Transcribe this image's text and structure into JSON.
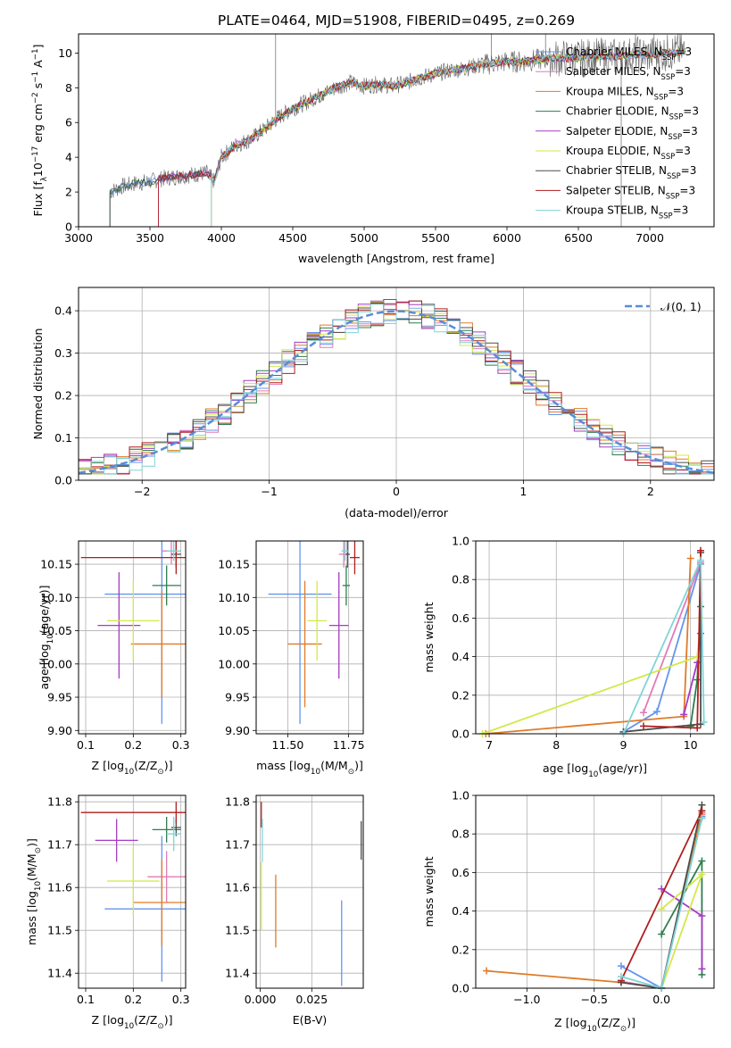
{
  "figure_title": "PLATE=0464, MJD=51908, FIBERID=0495, z=0.269",
  "colors": {
    "Chabrier MILES": "#6495ed",
    "Salpeter MILES": "#e27ab8",
    "Kroupa MILES": "#e07b28",
    "Chabrier ELODIE": "#2e7d4f",
    "Salpeter ELODIE": "#a63bc4",
    "Kroupa ELODIE": "#d3e84a",
    "Chabrier STELIB": "#4d4d4d",
    "Salpeter STELIB": "#b01e1e",
    "Kroupa STELIB": "#7fd4d9",
    "N(0,1)": "#5b8bd6"
  },
  "chart_data": [
    {
      "type": "line",
      "id": "spectrum",
      "title": "PLATE=0464, MJD=51908, FIBERID=0495, z=0.269",
      "xlabel": "wavelength [Angstrom, rest frame]",
      "ylabel_parts": [
        "Flux [f",
        "λ",
        "10",
        "−17",
        " erg cm",
        "−2",
        " s",
        "−1",
        " A",
        "−1",
        "]"
      ],
      "xlim": [
        3000,
        7450
      ],
      "ylim": [
        0,
        11.1
      ],
      "xticks": [
        "3000",
        "3500",
        "4000",
        "4500",
        "5000",
        "5500",
        "6000",
        "6500",
        "7000"
      ],
      "yticks": [
        "0",
        "2",
        "4",
        "6",
        "8",
        "10"
      ],
      "legend_loc": "right",
      "legend": [
        {
          "base": "Chabrier MILES, N",
          "sub": "SSP",
          "tail": "=3"
        },
        {
          "base": "Salpeter MILES, N",
          "sub": "SSP",
          "tail": "=3"
        },
        {
          "base": "Kroupa MILES, N",
          "sub": "SSP",
          "tail": "=3"
        },
        {
          "base": "Chabrier ELODIE, N",
          "sub": "SSP",
          "tail": "=3"
        },
        {
          "base": "Salpeter ELODIE, N",
          "sub": "SSP",
          "tail": "=3"
        },
        {
          "base": "Kroupa ELODIE, N",
          "sub": "SSP",
          "tail": "=3"
        },
        {
          "base": "Chabrier STELIB, N",
          "sub": "SSP",
          "tail": "=3"
        },
        {
          "base": "Salpeter STELIB, N",
          "sub": "SSP",
          "tail": "=3"
        },
        {
          "base": "Kroupa STELIB, N",
          "sub": "SSP",
          "tail": "=3"
        }
      ],
      "series_names": [
        "Chabrier MILES",
        "Salpeter MILES",
        "Kroupa MILES",
        "Chabrier ELODIE",
        "Salpeter ELODIE",
        "Kroupa ELODIE",
        "Chabrier STELIB",
        "Salpeter STELIB",
        "Kroupa STELIB"
      ],
      "continuum": [
        [
          3220,
          2.0
        ],
        [
          3300,
          2.3
        ],
        [
          3400,
          2.5
        ],
        [
          3500,
          2.6
        ],
        [
          3600,
          2.8
        ],
        [
          3700,
          2.9
        ],
        [
          3800,
          3.0
        ],
        [
          3900,
          3.1
        ],
        [
          3950,
          2.6
        ],
        [
          4000,
          4.0
        ],
        [
          4100,
          4.7
        ],
        [
          4200,
          5.0
        ],
        [
          4300,
          5.6
        ],
        [
          4400,
          6.3
        ],
        [
          4500,
          6.8
        ],
        [
          4600,
          7.2
        ],
        [
          4700,
          7.6
        ],
        [
          4800,
          8.0
        ],
        [
          4900,
          8.3
        ],
        [
          5000,
          8.1
        ],
        [
          5100,
          8.2
        ],
        [
          5200,
          8.1
        ],
        [
          5300,
          8.3
        ],
        [
          5400,
          8.6
        ],
        [
          5500,
          8.8
        ],
        [
          5600,
          9.0
        ],
        [
          5700,
          9.1
        ],
        [
          5800,
          9.3
        ],
        [
          5900,
          9.4
        ],
        [
          6000,
          9.5
        ],
        [
          6100,
          9.5
        ],
        [
          6200,
          9.6
        ],
        [
          6300,
          9.7
        ],
        [
          6400,
          9.7
        ],
        [
          6500,
          9.7
        ],
        [
          6600,
          9.8
        ],
        [
          6700,
          9.8
        ],
        [
          6800,
          9.8
        ],
        [
          6900,
          9.9
        ],
        [
          7000,
          9.9
        ],
        [
          7100,
          10.0
        ],
        [
          7250,
          10.1
        ]
      ],
      "model_start_wavelengths": [
        3220,
        3560,
        3930
      ]
    },
    {
      "type": "line",
      "id": "residual_histogram",
      "xlabel": "(data-model)/error",
      "ylabel": "Normed distribution",
      "xlim": [
        -2.5,
        2.5
      ],
      "ylim": [
        0,
        0.455
      ],
      "xticks": [
        "−2",
        "−1",
        "0",
        "1",
        "2"
      ],
      "yticks": [
        "0.0",
        "0.1",
        "0.2",
        "0.3",
        "0.4"
      ],
      "legend_loc": "upper right",
      "legend": [
        {
          "label": "𝒩(0, 1)"
        }
      ],
      "bin_width": 0.1,
      "bin_start": -2.5,
      "series_names": [
        "Chabrier MILES",
        "Salpeter MILES",
        "Kroupa MILES",
        "Chabrier ELODIE",
        "Salpeter ELODIE",
        "Kroupa ELODIE",
        "Chabrier STELIB",
        "Salpeter STELIB",
        "Kroupa STELIB"
      ],
      "reference_curve": "gaussian mean 0 sigma 1"
    },
    {
      "type": "scatter",
      "id": "age_vs_Z",
      "xlabel_parts": [
        "Z [log",
        "10",
        "(Z/Z",
        "⊙",
        ")]"
      ],
      "ylabel_parts": [
        "age  [log",
        "10",
        "(age/yr)]"
      ],
      "xlim": [
        0.085,
        0.31
      ],
      "ylim": [
        9.895,
        10.185
      ],
      "xticks": [
        "0.1",
        "0.2",
        "0.3"
      ],
      "yticks": [
        "9.90",
        "9.95",
        "10.00",
        "10.05",
        "10.10",
        "10.15"
      ],
      "points": [
        {
          "series": "Chabrier MILES",
          "x": 0.26,
          "y": 10.105,
          "xerr": 0.12,
          "yerr": 0.195
        },
        {
          "series": "Salpeter MILES",
          "x": 0.28,
          "y": 10.17,
          "xerr": 0.02,
          "yerr": 0.02
        },
        {
          "series": "Kroupa MILES",
          "x": 0.26,
          "y": 10.03,
          "xerr": 0.065,
          "yerr": 0.08
        },
        {
          "series": "Chabrier ELODIE",
          "x": 0.27,
          "y": 10.118,
          "xerr": 0.03,
          "yerr": 0.03
        },
        {
          "series": "Salpeter ELODIE",
          "x": 0.17,
          "y": 10.058,
          "xerr": 0.045,
          "yerr": 0.08
        },
        {
          "series": "Kroupa ELODIE",
          "x": 0.2,
          "y": 10.065,
          "xerr": 0.055,
          "yerr": 0.06
        },
        {
          "series": "Chabrier STELIB",
          "x": 0.29,
          "y": 10.165,
          "xerr": 0.01,
          "yerr": 0.02
        },
        {
          "series": "Salpeter STELIB",
          "x": 0.29,
          "y": 10.16,
          "xerr": 0.2,
          "yerr": 0.025
        },
        {
          "series": "Kroupa STELIB",
          "x": 0.285,
          "y": 10.17,
          "xerr": 0.015,
          "yerr": 0.015
        }
      ]
    },
    {
      "type": "scatter",
      "id": "age_vs_mass",
      "xlabel_parts": [
        "mass [log",
        "10",
        "(M/M",
        "⊙",
        ")]"
      ],
      "xlim": [
        11.37,
        11.81
      ],
      "ylim": [
        9.895,
        10.185
      ],
      "xticks": [
        "11.50",
        "11.75"
      ],
      "yticks": [
        "9.90",
        "9.95",
        "10.00",
        "10.05",
        "10.10",
        "10.15"
      ],
      "points": [
        {
          "series": "Chabrier MILES",
          "x": 11.55,
          "y": 10.105,
          "xerr": 0.13,
          "yerr": 0.195
        },
        {
          "series": "Salpeter MILES",
          "x": 11.73,
          "y": 10.165,
          "xerr": 0.02,
          "yerr": 0.02
        },
        {
          "series": "Kroupa MILES",
          "x": 11.57,
          "y": 10.03,
          "xerr": 0.07,
          "yerr": 0.095
        },
        {
          "series": "Chabrier ELODIE",
          "x": 11.74,
          "y": 10.118,
          "xerr": 0.015,
          "yerr": 0.03
        },
        {
          "series": "Salpeter ELODIE",
          "x": 11.71,
          "y": 10.058,
          "xerr": 0.04,
          "yerr": 0.08
        },
        {
          "series": "Kroupa ELODIE",
          "x": 11.62,
          "y": 10.065,
          "xerr": 0.04,
          "yerr": 0.06
        },
        {
          "series": "Chabrier STELIB",
          "x": 11.745,
          "y": 10.165,
          "xerr": 0.01,
          "yerr": 0.02
        },
        {
          "series": "Salpeter STELIB",
          "x": 11.775,
          "y": 10.16,
          "xerr": 0.02,
          "yerr": 0.025
        },
        {
          "series": "Kroupa STELIB",
          "x": 11.735,
          "y": 10.17,
          "xerr": 0.015,
          "yerr": 0.015
        }
      ]
    },
    {
      "type": "line",
      "id": "mass_weight_vs_age",
      "xlabel_parts": [
        "age  [log",
        "10",
        "(age/yr)]"
      ],
      "ylabel": "mass weight",
      "xlim": [
        6.8,
        10.35
      ],
      "ylim": [
        0,
        1
      ],
      "xticks": [
        "7",
        "8",
        "9",
        "10"
      ],
      "yticks": [
        "0.0",
        "0.2",
        "0.4",
        "0.6",
        "0.8",
        "1.0"
      ],
      "series": [
        {
          "name": "Chabrier MILES",
          "points": [
            [
              9.0,
              0.01
            ],
            [
              9.5,
              0.115
            ],
            [
              10.15,
              0.88
            ]
          ]
        },
        {
          "name": "Salpeter MILES",
          "points": [
            [
              9.3,
              0.11
            ],
            [
              10.15,
              0.89
            ]
          ]
        },
        {
          "name": "Kroupa MILES",
          "points": [
            [
              6.95,
              0.0
            ],
            [
              9.9,
              0.09
            ],
            [
              10.0,
              0.91
            ]
          ]
        },
        {
          "name": "Chabrier ELODIE",
          "points": [
            [
              10.0,
              0.04
            ],
            [
              10.1,
              0.28
            ],
            [
              10.15,
              0.66
            ]
          ]
        },
        {
          "name": "Salpeter ELODIE",
          "points": [
            [
              9.9,
              0.1
            ],
            [
              10.1,
              0.37
            ],
            [
              10.15,
              0.52
            ]
          ]
        },
        {
          "name": "Kroupa ELODIE",
          "points": [
            [
              6.9,
              0.0
            ],
            [
              10.1,
              0.4
            ],
            [
              10.15,
              0.6
            ]
          ]
        },
        {
          "name": "Chabrier STELIB",
          "points": [
            [
              9.0,
              0.01
            ],
            [
              10.15,
              0.05
            ],
            [
              10.15,
              0.94
            ]
          ]
        },
        {
          "name": "Salpeter STELIB",
          "points": [
            [
              9.3,
              0.04
            ],
            [
              10.1,
              0.03
            ],
            [
              10.15,
              0.95
            ]
          ]
        },
        {
          "name": "Kroupa STELIB",
          "points": [
            [
              9.0,
              0.0
            ],
            [
              10.15,
              0.9
            ],
            [
              10.2,
              0.06
            ]
          ]
        }
      ]
    },
    {
      "type": "scatter",
      "id": "mass_vs_Z",
      "xlabel_parts": [
        "Z [log",
        "10",
        "(Z/Z",
        "⊙",
        ")]"
      ],
      "ylabel_parts": [
        "mass [log",
        "10",
        "(M/M",
        "⊙",
        ")]"
      ],
      "xlim": [
        0.085,
        0.31
      ],
      "ylim": [
        11.365,
        11.815
      ],
      "xticks": [
        "0.1",
        "0.2",
        "0.3"
      ],
      "yticks": [
        "11.4",
        "11.5",
        "11.6",
        "11.7",
        "11.8"
      ],
      "points": [
        {
          "series": "Chabrier MILES",
          "x": 0.26,
          "y": 11.55,
          "xerr": 0.12,
          "yerr": 0.17
        },
        {
          "series": "Salpeter MILES",
          "x": 0.27,
          "y": 11.625,
          "xerr": 0.04,
          "yerr": 0.06
        },
        {
          "series": "Kroupa MILES",
          "x": 0.26,
          "y": 11.565,
          "xerr": 0.06,
          "yerr": 0.1
        },
        {
          "series": "Chabrier ELODIE",
          "x": 0.27,
          "y": 11.735,
          "xerr": 0.03,
          "yerr": 0.03
        },
        {
          "series": "Salpeter ELODIE",
          "x": 0.165,
          "y": 11.71,
          "xerr": 0.045,
          "yerr": 0.05
        },
        {
          "series": "Kroupa ELODIE",
          "x": 0.2,
          "y": 11.615,
          "xerr": 0.055,
          "yerr": 0.08
        },
        {
          "series": "Chabrier STELIB",
          "x": 0.29,
          "y": 11.74,
          "xerr": 0.01,
          "yerr": 0.02
        },
        {
          "series": "Salpeter STELIB",
          "x": 0.29,
          "y": 11.775,
          "xerr": 0.2,
          "yerr": 0.025
        },
        {
          "series": "Kroupa STELIB",
          "x": 0.285,
          "y": 11.725,
          "xerr": 0.015,
          "yerr": 0.04
        }
      ]
    },
    {
      "type": "scatter",
      "id": "mass_vs_EBV",
      "xlabel": "E(B-V)",
      "xlim": [
        -0.002,
        0.05
      ],
      "ylim": [
        11.365,
        11.815
      ],
      "xticks": [
        "0.000",
        "0.025"
      ],
      "yticks": [
        "11.4",
        "11.5",
        "11.6",
        "11.7",
        "11.8"
      ],
      "points": [
        {
          "series": "Chabrier MILES",
          "x": 0.0395,
          "y": 11.47,
          "yerr": 0.1
        },
        {
          "series": "Kroupa MILES",
          "x": 0.0075,
          "y": 11.545,
          "yerr": 0.085
        },
        {
          "series": "Kroupa ELODIE",
          "x": 0.0005,
          "y": 11.58,
          "yerr": 0.08
        },
        {
          "series": "Chabrier STELIB",
          "x": 0.049,
          "y": 11.71,
          "yerr": 0.045
        },
        {
          "series": "Salpeter STELIB",
          "x": 0.0005,
          "y": 11.77,
          "yerr": 0.03
        },
        {
          "series": "Kroupa STELIB",
          "x": 0.001,
          "y": 11.71,
          "yerr": 0.05
        }
      ]
    },
    {
      "type": "line",
      "id": "mass_weight_vs_Z",
      "xlabel_parts": [
        "Z [log",
        "10",
        "(Z/Z",
        "⊙",
        ")]"
      ],
      "ylabel": "mass weight",
      "xlim": [
        -1.38,
        0.39
      ],
      "ylim": [
        0,
        1
      ],
      "xticks": [
        "−1.0",
        "−0.5",
        "0.0"
      ],
      "yticks": [
        "0.0",
        "0.2",
        "0.4",
        "0.6",
        "0.8",
        "1.0"
      ],
      "series": [
        {
          "name": "Chabrier MILES",
          "points": [
            [
              -0.3,
              0.115
            ],
            [
              0.0,
              0.0
            ],
            [
              0.3,
              0.89
            ]
          ]
        },
        {
          "name": "Salpeter MILES",
          "points": [
            [
              -0.3,
              0.035
            ],
            [
              0.0,
              0.0
            ],
            [
              0.3,
              0.9
            ]
          ]
        },
        {
          "name": "Kroupa MILES",
          "points": [
            [
              -1.3,
              0.09
            ],
            [
              -0.3,
              0.03
            ],
            [
              0.0,
              0.0
            ],
            [
              0.3,
              0.91
            ]
          ]
        },
        {
          "name": "Chabrier ELODIE",
          "points": [
            [
              0.0,
              0.28
            ],
            [
              0.3,
              0.66
            ],
            [
              0.3,
              0.07
            ]
          ]
        },
        {
          "name": "Salpeter ELODIE",
          "points": [
            [
              0.0,
              0.515
            ],
            [
              0.3,
              0.375
            ],
            [
              0.3,
              0.1
            ]
          ]
        },
        {
          "name": "Kroupa ELODIE",
          "points": [
            [
              0.0,
              0.41
            ],
            [
              0.3,
              0.59
            ],
            [
              0.0,
              0.0
            ]
          ]
        },
        {
          "name": "Chabrier STELIB",
          "points": [
            [
              -0.3,
              0.03
            ],
            [
              0.0,
              0.0
            ],
            [
              0.3,
              0.95
            ]
          ]
        },
        {
          "name": "Salpeter STELIB",
          "points": [
            [
              -0.3,
              0.04
            ],
            [
              0.3,
              0.92
            ]
          ]
        },
        {
          "name": "Kroupa STELIB",
          "points": [
            [
              -0.3,
              0.06
            ],
            [
              0.0,
              0.0
            ],
            [
              0.3,
              0.88
            ]
          ]
        }
      ]
    }
  ]
}
